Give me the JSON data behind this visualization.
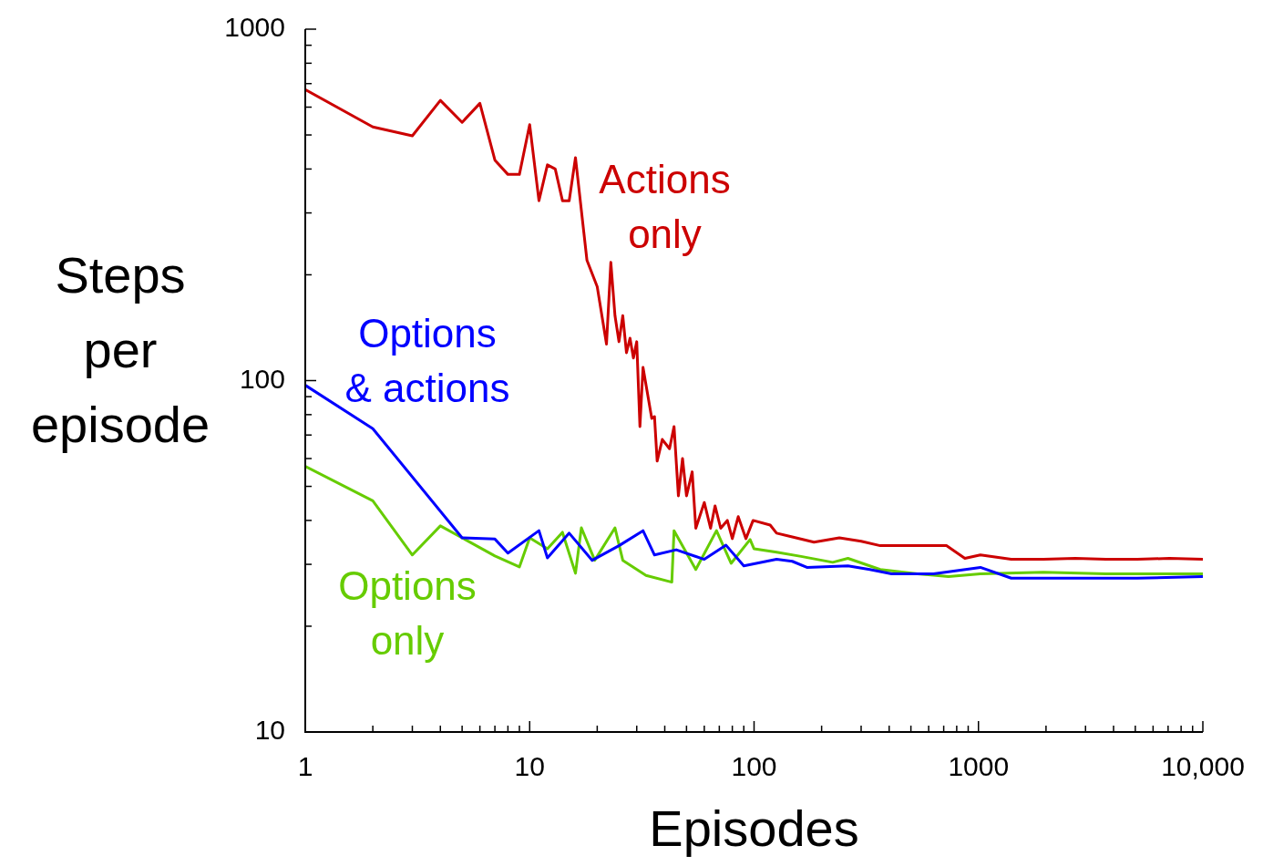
{
  "chart_data": {
    "type": "line",
    "xlabel": "Episodes",
    "ylabel": "Steps per episode",
    "log": "xy",
    "legend": false,
    "grid": false,
    "xlim": [
      1,
      10000
    ],
    "ylim": [
      10,
      1000
    ],
    "xticks": [
      1,
      {
        "value": 2,
        "label": null
      },
      {
        "value": 3,
        "label": null
      },
      {
        "value": 4,
        "label": null
      },
      {
        "value": 5,
        "label": null
      },
      {
        "value": 6,
        "label": null
      },
      {
        "value": 7,
        "label": null
      },
      {
        "value": 8,
        "label": null
      },
      {
        "value": 9,
        "label": null
      },
      10,
      {
        "value": 20,
        "label": null
      },
      {
        "value": 30,
        "label": null
      },
      {
        "value": 40,
        "label": null
      },
      {
        "value": 50,
        "label": null
      },
      {
        "value": 60,
        "label": null
      },
      {
        "value": 70,
        "label": null
      },
      {
        "value": 80,
        "label": null
      },
      {
        "value": 90,
        "label": null
      },
      100,
      {
        "value": 200,
        "label": null
      },
      {
        "value": 300,
        "label": null
      },
      {
        "value": 400,
        "label": null
      },
      {
        "value": 500,
        "label": null
      },
      {
        "value": 600,
        "label": null
      },
      {
        "value": 700,
        "label": null
      },
      {
        "value": 800,
        "label": null
      },
      {
        "value": 900,
        "label": null
      },
      1000,
      {
        "value": 2000,
        "label": null
      },
      {
        "value": 3000,
        "label": null
      },
      {
        "value": 4000,
        "label": null
      },
      {
        "value": 5000,
        "label": null
      },
      {
        "value": 6000,
        "label": null
      },
      {
        "value": 7000,
        "label": null
      },
      {
        "value": 8000,
        "label": null
      },
      {
        "value": 9000,
        "label": null
      },
      {
        "value": 10000,
        "label": "10,000"
      }
    ],
    "yticks": [
      10,
      {
        "value": 20,
        "label": null
      },
      {
        "value": 30,
        "label": null
      },
      {
        "value": 40,
        "label": null
      },
      {
        "value": 50,
        "label": null
      },
      {
        "value": 60,
        "label": null
      },
      {
        "value": 70,
        "label": null
      },
      {
        "value": 80,
        "label": null
      },
      {
        "value": 90,
        "label": null
      },
      100,
      {
        "value": 200,
        "label": null
      },
      {
        "value": 300,
        "label": null
      },
      {
        "value": 400,
        "label": null
      },
      {
        "value": 500,
        "label": null
      },
      {
        "value": 600,
        "label": null
      },
      {
        "value": 700,
        "label": null
      },
      {
        "value": 800,
        "label": null
      },
      {
        "value": 900,
        "label": null
      },
      1000
    ],
    "series": [
      {
        "name": "Actions only",
        "color": "#cc0000",
        "x": [
          1,
          2,
          3,
          4,
          5,
          6,
          7,
          8,
          9,
          10,
          11,
          12,
          13,
          14,
          15,
          16,
          18,
          20,
          22,
          23,
          24,
          25,
          26,
          27,
          28,
          29,
          30,
          31,
          32,
          35,
          36,
          37,
          39,
          42,
          44,
          46,
          48,
          50,
          53,
          55,
          60,
          64,
          67,
          71,
          76,
          80,
          85,
          92,
          99,
          118,
          126,
          148,
          185,
          240,
          300,
          365,
          470,
          590,
          720,
          870,
          1020,
          1400,
          1950,
          2700,
          3700,
          5100,
          7100,
          10000
        ],
        "values": [
          673,
          527,
          497,
          627,
          543,
          615,
          424,
          386,
          386,
          535,
          325,
          411,
          400,
          325,
          325,
          431,
          220,
          185,
          127,
          217,
          153,
          129,
          153,
          120,
          132,
          116,
          129,
          74,
          109,
          78,
          79,
          59,
          68,
          64,
          74,
          47,
          60,
          47,
          55,
          38,
          45,
          38,
          44,
          38,
          40,
          35.5,
          41,
          35.5,
          40,
          38.8,
          36.8,
          35.9,
          34.7,
          35.7,
          34.9,
          33.9,
          33.9,
          33.9,
          33.9,
          31.2,
          31.9,
          31,
          31,
          31.2,
          31,
          31,
          31.2,
          31
        ]
      },
      {
        "name": "Options & actions",
        "color": "#0000ff",
        "x": [
          1,
          2,
          5,
          7,
          8,
          11,
          12,
          15,
          19,
          25,
          32,
          36,
          45,
          60,
          75,
          90,
          126,
          148,
          172,
          262,
          328,
          410,
          630,
          1020,
          1400,
          2700,
          5100,
          10000
        ],
        "values": [
          97,
          73,
          35.7,
          35.4,
          32.3,
          37.4,
          31.3,
          36.8,
          30.8,
          33.9,
          37.4,
          31.9,
          33,
          31,
          34,
          29.7,
          31,
          30.6,
          29.4,
          29.7,
          29,
          28.2,
          28.2,
          29.4,
          27.4,
          27.4,
          27.4,
          27.7
        ]
      },
      {
        "name": "Options only",
        "color": "#66cc00",
        "x": [
          1,
          2,
          3,
          4,
          5,
          7,
          9,
          10,
          12,
          14,
          16,
          17,
          19.5,
          24,
          26,
          33,
          43,
          44,
          55,
          68,
          79,
          96,
          100,
          126,
          162,
          224,
          262,
          365,
          535,
          735,
          1020,
          1950,
          3700,
          10000
        ],
        "values": [
          57,
          45.5,
          31.9,
          38.6,
          35.7,
          31.7,
          29.5,
          35.7,
          33.2,
          37,
          28.3,
          38.1,
          30.8,
          38.1,
          30.8,
          27.9,
          26.7,
          37.4,
          29,
          37.4,
          30.2,
          35.3,
          33.2,
          32.5,
          31.6,
          30.4,
          31.2,
          29,
          28.2,
          27.7,
          28.2,
          28.5,
          28.2,
          28.2
        ]
      }
    ]
  }
}
